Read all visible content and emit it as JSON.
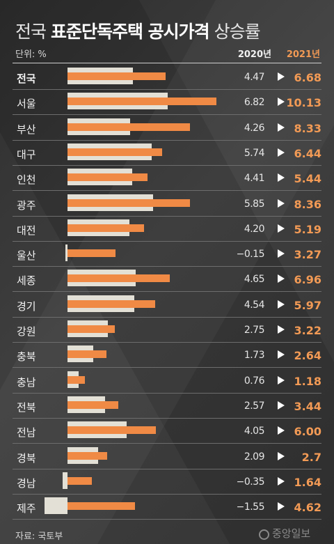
{
  "title": {
    "normal_prefix": "전국 ",
    "bold": "표준단독주택 공시가격",
    "normal_suffix": " 상승률"
  },
  "unit_label": "단위: %",
  "columns": {
    "col_2020": "2020년",
    "col_2021": "2021년"
  },
  "source": "자료: 국토부",
  "logo_text": "중앙일보",
  "colors": {
    "bar_2020": "#e3e0d6",
    "bar_2021": "#f08a45",
    "accent_text": "#f29a55",
    "background": "#3a3a3a"
  },
  "chart_data": {
    "type": "bar",
    "orientation": "horizontal",
    "categories": [
      "전국",
      "서울",
      "부산",
      "대구",
      "인천",
      "광주",
      "대전",
      "울산",
      "세종",
      "경기",
      "강원",
      "충북",
      "충남",
      "전북",
      "전남",
      "경북",
      "경남",
      "제주"
    ],
    "series": [
      {
        "name": "2020년",
        "values": [
          4.47,
          6.82,
          4.26,
          5.74,
          4.41,
          5.85,
          4.2,
          -0.15,
          4.65,
          4.54,
          2.75,
          1.73,
          0.76,
          2.57,
          4.05,
          2.09,
          -0.35,
          -1.55
        ]
      },
      {
        "name": "2021년",
        "values": [
          6.68,
          10.13,
          8.33,
          6.44,
          5.44,
          8.36,
          5.19,
          3.27,
          6.96,
          5.97,
          3.22,
          2.64,
          1.18,
          3.44,
          6.0,
          2.7,
          1.64,
          4.62
        ]
      }
    ],
    "labels_2020": [
      "4.47",
      "6.82",
      "4.26",
      "5.74",
      "4.41",
      "5.85",
      "4.20",
      "−0.15",
      "4.65",
      "4.54",
      "2.75",
      "1.73",
      "0.76",
      "2.57",
      "4.05",
      "2.09",
      "−0.35",
      "−1.55"
    ],
    "labels_2021": [
      "6.68",
      "10.13",
      "8.33",
      "6.44",
      "5.44",
      "8.36",
      "5.19",
      "3.27",
      "6.96",
      "5.97",
      "3.22",
      "2.64",
      "1.18",
      "3.44",
      "6.00",
      "2.7",
      "1.64",
      "4.62"
    ],
    "xlim": [
      -1.55,
      10.13
    ],
    "grid": false,
    "legend": "column headers top-right"
  }
}
